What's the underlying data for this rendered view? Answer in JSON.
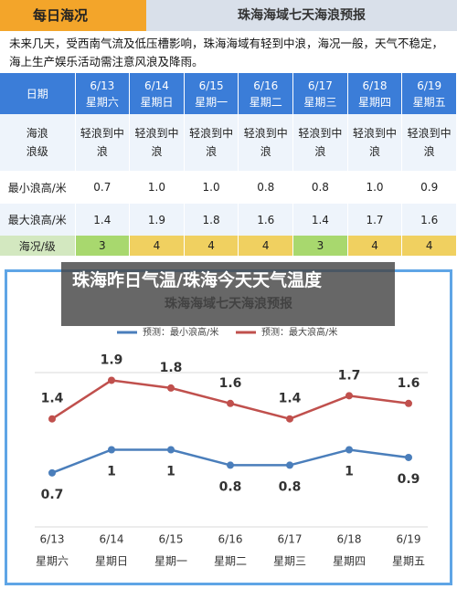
{
  "header": {
    "tab_active": "每日海况",
    "tab_title": "珠海海域七天海浪预报"
  },
  "notice": "未来几天，受西南气流及低压槽影响，珠海海域有轻到中浪，海况一般，天气不稳定，海上生产娱乐活动需注意风浪及降雨。",
  "table": {
    "head_label": "日期",
    "head": [
      {
        "date": "6/13",
        "weekday": "星期六"
      },
      {
        "date": "6/14",
        "weekday": "星期日"
      },
      {
        "date": "6/15",
        "weekday": "星期一"
      },
      {
        "date": "6/16",
        "weekday": "星期二"
      },
      {
        "date": "6/17",
        "weekday": "星期三"
      },
      {
        "date": "6/18",
        "weekday": "星期四"
      },
      {
        "date": "6/19",
        "weekday": "星期五"
      }
    ],
    "rows": [
      {
        "label": "海浪浪级",
        "cells": [
          "轻浪到中浪",
          "轻浪到中浪",
          "轻浪到中浪",
          "轻浪到中浪",
          "轻浪到中浪",
          "轻浪到中浪",
          "轻浪到中浪"
        ]
      },
      {
        "label": "最小浪高/米",
        "cells": [
          "0.7",
          "1.0",
          "1.0",
          "0.8",
          "0.8",
          "1.0",
          "0.9"
        ]
      },
      {
        "label": "最大浪高/米",
        "cells": [
          "1.4",
          "1.9",
          "1.8",
          "1.6",
          "1.4",
          "1.7",
          "1.6"
        ]
      },
      {
        "label": "海况/级",
        "cells": [
          "3",
          "4",
          "4",
          "4",
          "3",
          "4",
          "4"
        ],
        "colors": [
          "#a8d86e",
          "#f0d060",
          "#f0d060",
          "#f0d060",
          "#a8d86e",
          "#f0d060",
          "#f0d060"
        ]
      }
    ]
  },
  "overlay_caption": "珠海昨日气温/珠海今天天气温度",
  "chart_data": {
    "type": "line",
    "title": "珠海海域七天海浪预报",
    "categories": [
      "6/13",
      "6/14",
      "6/15",
      "6/16",
      "6/17",
      "6/18",
      "6/19"
    ],
    "weekdays": [
      "星期六",
      "星期日",
      "星期一",
      "星期二",
      "星期三",
      "星期四",
      "星期五"
    ],
    "series": [
      {
        "name": "预测：最小浪高/米",
        "color": "#4a7ebb",
        "values": [
          0.7,
          1,
          1,
          0.8,
          0.8,
          1,
          0.9
        ]
      },
      {
        "name": "预测：最大浪高/米",
        "color": "#c0504d",
        "values": [
          1.4,
          1.9,
          1.8,
          1.6,
          1.4,
          1.7,
          1.6
        ]
      }
    ],
    "ylim": [
      0,
      2
    ],
    "grid": true
  }
}
